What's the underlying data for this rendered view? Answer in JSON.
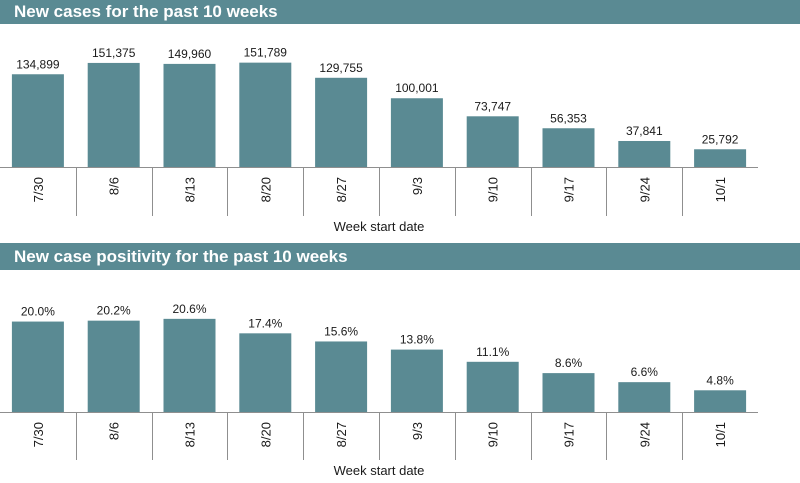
{
  "theme": {
    "bar_color": "#5a8a93",
    "title_bg": "#5a8a93",
    "axis_color": "#8f8f8f",
    "text_color": "#1a1a1a"
  },
  "panels": [
    {
      "title": "New cases for the past 10 weeks"
    },
    {
      "title": "New case positivity for the past 10 weeks"
    }
  ],
  "chart_data": [
    {
      "type": "bar",
      "title": "New cases for the past 10 weeks",
      "xlabel": "Week start date",
      "ylabel": "",
      "categories": [
        "7/30",
        "8/6",
        "8/13",
        "8/20",
        "8/27",
        "9/3",
        "9/10",
        "9/17",
        "9/24",
        "10/1"
      ],
      "values": [
        134899,
        151375,
        149960,
        151789,
        129755,
        100001,
        73747,
        56353,
        37841,
        25792
      ],
      "data_labels": [
        "134,899",
        "151,375",
        "149,960",
        "151,789",
        "129,755",
        "100,001",
        "73,747",
        "56,353",
        "37,841",
        "25,792"
      ],
      "ylim": [
        0,
        160000
      ],
      "grid": false,
      "legend": "none"
    },
    {
      "type": "bar",
      "title": "New case positivity for the past 10 weeks",
      "xlabel": "Week start date",
      "ylabel": "",
      "categories": [
        "7/30",
        "8/6",
        "8/13",
        "8/20",
        "8/27",
        "9/3",
        "9/10",
        "9/17",
        "9/24",
        "10/1"
      ],
      "values": [
        20.0,
        20.2,
        20.6,
        17.4,
        15.6,
        13.8,
        11.1,
        8.6,
        6.6,
        4.8
      ],
      "data_labels": [
        "20.0%",
        "20.2%",
        "20.6%",
        "17.4%",
        "15.6%",
        "13.8%",
        "11.1%",
        "8.6%",
        "6.6%",
        "4.8%"
      ],
      "ylim": [
        0,
        23
      ],
      "grid": false,
      "legend": "none"
    }
  ]
}
